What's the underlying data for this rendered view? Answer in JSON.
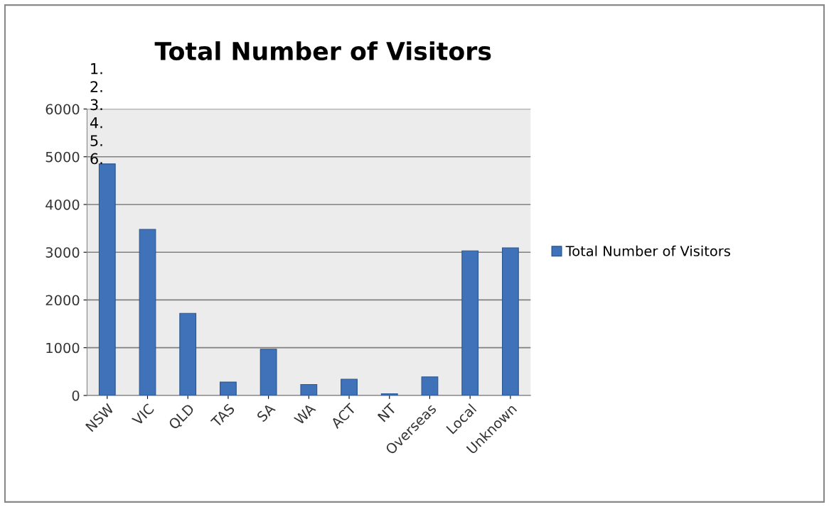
{
  "chart_data": {
    "type": "bar",
    "title": "Total Number of Visitors",
    "categories": [
      "NSW",
      "VIC",
      "QLD",
      "TAS",
      "SA",
      "WA",
      "ACT",
      "NT",
      "Overseas",
      "Local",
      "Unknown"
    ],
    "series": [
      {
        "name": "Total Number of Visitors",
        "color": "#3f72b8",
        "values": [
          4850,
          3480,
          1720,
          280,
          970,
          230,
          340,
          35,
          390,
          3030,
          3090
        ]
      }
    ],
    "ylim": [
      0,
      6000
    ],
    "yticks": [
      0,
      1000,
      2000,
      3000,
      4000,
      5000,
      6000
    ],
    "grid": "y",
    "legend": "right",
    "annotations": [
      "1.",
      "2.",
      "3.",
      "4.",
      "5.",
      "6."
    ]
  }
}
